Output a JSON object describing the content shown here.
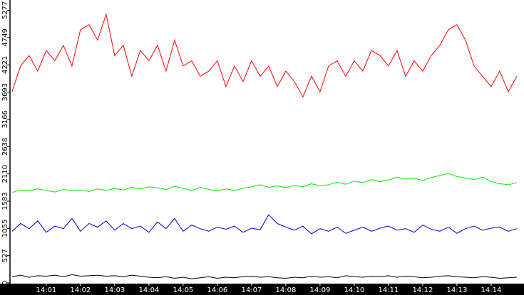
{
  "chart_data": {
    "type": "line",
    "x": [
      840,
      840.25,
      840.5,
      840.75,
      841,
      841.25,
      841.5,
      841.75,
      842,
      842.25,
      842.5,
      842.75,
      843,
      843.25,
      843.5,
      843.75,
      844,
      844.25,
      844.5,
      844.75,
      845,
      845.25,
      845.5,
      845.75,
      846,
      846.25,
      846.5,
      846.75,
      847,
      847.25,
      847.5,
      847.75,
      848,
      848.25,
      848.5,
      848.75,
      849,
      849.25,
      849.5,
      849.75,
      850,
      850.25,
      850.5,
      850.75,
      851,
      851.25,
      851.5,
      851.75,
      852,
      852.25,
      852.5,
      852.75,
      853,
      853.25,
      853.5,
      853.75,
      854,
      854.25,
      854.5,
      854.75
    ],
    "series": [
      {
        "color": "#ff0000",
        "values": [
          3700,
          4200,
          4400,
          4100,
          4500,
          4300,
          4600,
          4200,
          4900,
          5000,
          4700,
          5200,
          4400,
          4600,
          4000,
          4500,
          4300,
          4600,
          4100,
          4700,
          4200,
          4300,
          4000,
          4100,
          4300,
          3800,
          4200,
          3900,
          4300,
          4000,
          4200,
          3800,
          4100,
          3900,
          3600,
          4000,
          3700,
          4200,
          4300,
          4000,
          4300,
          4100,
          4500,
          4400,
          4200,
          4500,
          4000,
          4300,
          4100,
          4400,
          4600,
          4900,
          5000,
          4700,
          4200,
          4000,
          3800,
          4100,
          3700,
          4000
        ]
      },
      {
        "color": "#00ee00",
        "values": [
          1750,
          1800,
          1780,
          1820,
          1790,
          1760,
          1810,
          1780,
          1800,
          1770,
          1820,
          1790,
          1830,
          1800,
          1850,
          1820,
          1860,
          1840,
          1810,
          1870,
          1830,
          1790,
          1850,
          1810,
          1780,
          1820,
          1790,
          1830,
          1860,
          1900,
          1850,
          1880,
          1840,
          1890,
          1860,
          1920,
          1880,
          1900,
          1950,
          1910,
          1970,
          1940,
          2000,
          1960,
          1990,
          2050,
          2010,
          2030,
          1980,
          2040,
          2080,
          2120,
          2060,
          2030,
          2000,
          2050,
          1960,
          1920,
          1900,
          1940
        ]
      },
      {
        "color": "#0000cc",
        "values": [
          1000,
          1150,
          1050,
          1200,
          980,
          1100,
          1050,
          1250,
          1000,
          1150,
          1080,
          1200,
          1020,
          1150,
          1050,
          1100,
          980,
          1180,
          1050,
          1250,
          1000,
          1120,
          1050,
          1000,
          1080,
          1040,
          1100,
          980,
          1060,
          1030,
          1320,
          1150,
          1080,
          1020,
          1100,
          950,
          1050,
          1000,
          1080,
          960,
          1020,
          1080,
          1000,
          1060,
          1100,
          1020,
          1050,
          980,
          1120,
          1040,
          1000,
          1080,
          960,
          1050,
          1100,
          1020,
          1060,
          1080,
          1000,
          1050
        ]
      },
      {
        "color": "#000000",
        "values": [
          120,
          150,
          110,
          140,
          130,
          150,
          120,
          160,
          130,
          140,
          150,
          130,
          140,
          120,
          150,
          130,
          110,
          100,
          120,
          90,
          110,
          80,
          100,
          120,
          90,
          110,
          100,
          120,
          130,
          110,
          120,
          100,
          90,
          110,
          100,
          130,
          110,
          120,
          100,
          140,
          120,
          110,
          130,
          120,
          140,
          110,
          130,
          120,
          100,
          110,
          130,
          140,
          120,
          110,
          100,
          120,
          110,
          90,
          100,
          110
        ]
      }
    ],
    "xlim": [
      839.94,
      854.96
    ],
    "xticks": [
      {
        "value": 841,
        "label": "14:01"
      },
      {
        "value": 842,
        "label": "14:02"
      },
      {
        "value": 843,
        "label": "14:03"
      },
      {
        "value": 844,
        "label": "14:04"
      },
      {
        "value": 845,
        "label": "14:05"
      },
      {
        "value": 846,
        "label": "14:06"
      },
      {
        "value": 847,
        "label": "14:07"
      },
      {
        "value": 848,
        "label": "14:08"
      },
      {
        "value": 849,
        "label": "14:09"
      },
      {
        "value": 850,
        "label": "14:10"
      },
      {
        "value": 851,
        "label": "14:11"
      },
      {
        "value": 852,
        "label": "14:12"
      },
      {
        "value": 853,
        "label": "14:13"
      },
      {
        "value": 854,
        "label": "14:14"
      }
    ],
    "ylim": [
      0,
      5477
    ],
    "yticks": [
      0,
      527,
      1055,
      1583,
      2110,
      2638,
      3166,
      3693,
      4221,
      4749,
      5277
    ]
  }
}
